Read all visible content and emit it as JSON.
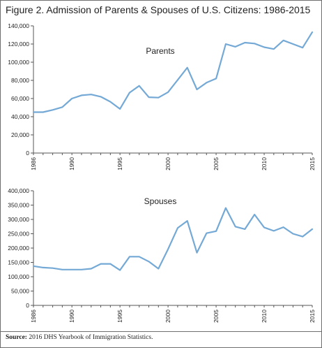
{
  "figure": {
    "title": "Figure 2. Admission of Parents & Spouses of U.S. Citizens: 1986-2015",
    "source_label": "Source:",
    "source_text": "2016 DHS Yearbook of Immigration Statistics."
  },
  "chart_data": [
    {
      "type": "line",
      "series_label": "Parents",
      "x": [
        1986,
        1987,
        1988,
        1989,
        1990,
        1991,
        1992,
        1993,
        1994,
        1995,
        1996,
        1997,
        1998,
        1999,
        2000,
        2001,
        2002,
        2003,
        2004,
        2005,
        2006,
        2007,
        2008,
        2009,
        2010,
        2011,
        2012,
        2013,
        2014,
        2015
      ],
      "series": [
        {
          "name": "Parents",
          "values": [
            45000,
            45000,
            47500,
            50500,
            60000,
            63500,
            64500,
            62000,
            56500,
            48500,
            66500,
            74000,
            61500,
            61000,
            67000,
            80500,
            94000,
            70000,
            77500,
            82000,
            120000,
            117000,
            121500,
            120500,
            116500,
            114500,
            124000,
            120000,
            116000,
            133000
          ]
        }
      ],
      "xlim": [
        1986,
        2015
      ],
      "ylim": [
        0,
        140000
      ],
      "x_ticks": [
        1986,
        1990,
        1995,
        2000,
        2005,
        2010,
        2015
      ],
      "y_ticks": [
        0,
        20000,
        40000,
        60000,
        80000,
        100000,
        120000,
        140000
      ],
      "y_tick_labels": [
        "0",
        "20,000",
        "40,000",
        "60,000",
        "80,000",
        "100,000",
        "120,000",
        "140,000"
      ],
      "grid": false
    },
    {
      "type": "line",
      "series_label": "Spouses",
      "x": [
        1986,
        1987,
        1988,
        1989,
        1990,
        1991,
        1992,
        1993,
        1994,
        1995,
        1996,
        1997,
        1998,
        1999,
        2000,
        2001,
        2002,
        2003,
        2004,
        2005,
        2006,
        2007,
        2008,
        2009,
        2010,
        2011,
        2012,
        2013,
        2014,
        2015
      ],
      "series": [
        {
          "name": "Spouses",
          "values": [
            137000,
            132000,
            130000,
            125000,
            125000,
            125000,
            128000,
            145000,
            145000,
            123000,
            170000,
            170000,
            153000,
            128000,
            196000,
            270000,
            295000,
            184000,
            252000,
            259000,
            340000,
            275000,
            266000,
            317000,
            272000,
            260000,
            273000,
            250000,
            240000,
            266000
          ]
        }
      ],
      "xlim": [
        1986,
        2015
      ],
      "ylim": [
        0,
        400000
      ],
      "x_ticks": [
        1986,
        1990,
        1995,
        2000,
        2005,
        2010,
        2015
      ],
      "y_ticks": [
        0,
        50000,
        100000,
        150000,
        200000,
        250000,
        300000,
        350000,
        400000
      ],
      "y_tick_labels": [
        "0",
        "50,000",
        "100,000",
        "150,000",
        "200,000",
        "250,000",
        "300,000",
        "350,000",
        "400,000"
      ],
      "grid": false
    }
  ],
  "colors": {
    "line": "#74a9d6",
    "axis": "#555555",
    "border": "#6e6e6e"
  }
}
